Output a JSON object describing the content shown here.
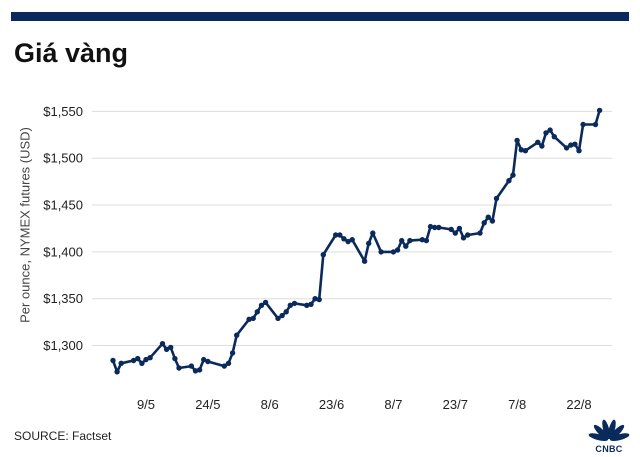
{
  "header": {
    "title": "Giá vàng"
  },
  "footer": {
    "source": "SOURCE: Factset"
  },
  "logo": {
    "text": "CNBC"
  },
  "colors": {
    "line": "#0b2a5c",
    "grid": "#dddddd",
    "bar": "#0b2a5c"
  },
  "chart_data": {
    "type": "line",
    "title": "Giá vàng",
    "ylabel": "Per ounce, NYMEX futures (USD)",
    "xlabel": "",
    "ylim": [
      1260,
      1560
    ],
    "yticks": [
      1300,
      1350,
      1400,
      1450,
      1500,
      1550
    ],
    "ytick_labels": [
      "$1,300",
      "$1,350",
      "$1,400",
      "$1,450",
      "$1,500",
      "$1,550"
    ],
    "xlim": [
      "2019-05-01",
      "2019-08-30"
    ],
    "xticks": [
      "2019-05-09",
      "2019-05-24",
      "2019-06-08",
      "2019-06-23",
      "2019-07-08",
      "2019-07-23",
      "2019-08-07",
      "2019-08-22"
    ],
    "xtick_labels": [
      "9/5",
      "24/5",
      "8/6",
      "23/6",
      "8/7",
      "23/7",
      "7/8",
      "22/8"
    ],
    "grid": true,
    "series": [
      {
        "x": [
          "2019-05-01",
          "2019-05-02",
          "2019-05-03",
          "2019-05-06",
          "2019-05-07",
          "2019-05-08",
          "2019-05-09",
          "2019-05-10",
          "2019-05-13",
          "2019-05-14",
          "2019-05-15",
          "2019-05-16",
          "2019-05-17",
          "2019-05-20",
          "2019-05-21",
          "2019-05-22",
          "2019-05-23",
          "2019-05-24",
          "2019-05-28",
          "2019-05-29",
          "2019-05-30",
          "2019-05-31",
          "2019-06-03",
          "2019-06-04",
          "2019-06-05",
          "2019-06-06",
          "2019-06-07",
          "2019-06-10",
          "2019-06-11",
          "2019-06-12",
          "2019-06-13",
          "2019-06-14",
          "2019-06-17",
          "2019-06-18",
          "2019-06-19",
          "2019-06-20",
          "2019-06-21",
          "2019-06-24",
          "2019-06-25",
          "2019-06-26",
          "2019-06-27",
          "2019-06-28",
          "2019-07-01",
          "2019-07-02",
          "2019-07-03",
          "2019-07-05",
          "2019-07-08",
          "2019-07-09",
          "2019-07-10",
          "2019-07-11",
          "2019-07-12",
          "2019-07-15",
          "2019-07-16",
          "2019-07-17",
          "2019-07-18",
          "2019-07-19",
          "2019-07-22",
          "2019-07-23",
          "2019-07-24",
          "2019-07-25",
          "2019-07-26",
          "2019-07-29",
          "2019-07-30",
          "2019-07-31",
          "2019-08-01",
          "2019-08-02",
          "2019-08-05",
          "2019-08-06",
          "2019-08-07",
          "2019-08-08",
          "2019-08-09",
          "2019-08-12",
          "2019-08-13",
          "2019-08-14",
          "2019-08-15",
          "2019-08-16",
          "2019-08-19",
          "2019-08-20",
          "2019-08-21",
          "2019-08-22",
          "2019-08-23",
          "2019-08-26",
          "2019-08-27"
        ],
        "y": [
          1284,
          1272,
          1281,
          1284,
          1286,
          1281,
          1285,
          1287,
          1302,
          1296,
          1298,
          1286,
          1276,
          1278,
          1273,
          1274,
          1285,
          1283,
          1278,
          1281,
          1292,
          1311,
          1328,
          1329,
          1336,
          1343,
          1346,
          1329,
          1332,
          1336,
          1343,
          1345,
          1343,
          1344,
          1350,
          1349,
          1397,
          1418,
          1418,
          1414,
          1411,
          1413,
          1390,
          1409,
          1420,
          1400,
          1400,
          1402,
          1412,
          1406,
          1412,
          1413,
          1412,
          1427,
          1426,
          1426,
          1424,
          1420,
          1425,
          1415,
          1418,
          1420,
          1431,
          1437,
          1433,
          1457,
          1476,
          1482,
          1519,
          1509,
          1508,
          1517,
          1513,
          1527,
          1530,
          1523,
          1511,
          1514,
          1515,
          1508,
          1536,
          1536,
          1551
        ]
      }
    ]
  }
}
